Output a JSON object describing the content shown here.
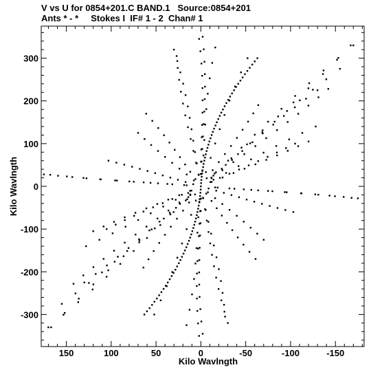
{
  "header": {
    "line1": "V vs U for 0854+201.C BAND.1   Source:0854+201",
    "line2": "Ants * - *     Stokes I  IF# 1 - 2  Chan# 1"
  },
  "chart_data": {
    "type": "scatter",
    "title": "V vs U for 0854+201.C BAND.1   Source:0854+201",
    "subtitle": "Ants * - *     Stokes I  IF# 1 - 2  Chan# 1",
    "xlabel": "Kilo Wavlngth",
    "ylabel": "Kilo Wavlngth",
    "xlim": [
      178,
      -182
    ],
    "ylim": [
      -375,
      375
    ],
    "x_reversed": true,
    "x_ticks": [
      150,
      100,
      50,
      0,
      -50,
      -100,
      -150
    ],
    "y_ticks": [
      300,
      200,
      100,
      0,
      -100,
      -200,
      -300
    ],
    "grid": false,
    "point_color": "#000000",
    "series": [
      {
        "arm_endpoints": [
          {
            "x": -52,
            "y": 300
          },
          {
            "x": -167,
            "y": 330
          },
          {
            "x": -155,
            "y": 275
          },
          {
            "x": -142,
            "y": 228
          },
          {
            "x": -128,
            "y": 140
          },
          {
            "x": -105,
            "y": 100
          },
          {
            "x": -175,
            "y": -28
          },
          {
            "x": -103,
            "y": -60
          },
          {
            "x": -70,
            "y": -125
          },
          {
            "x": 61,
            "y": 170
          },
          {
            "x": 27,
            "y": 305
          },
          {
            "x": 2,
            "y": 345
          },
          {
            "x": 168,
            "y": 27
          },
          {
            "x": 64,
            "y": -190
          },
          {
            "x": 170,
            "y": -330
          },
          {
            "x": 2,
            "y": -350
          },
          {
            "x": 16,
            "y": -325
          },
          {
            "x": 120,
            "y": -105
          },
          {
            "x": 130,
            "y": -225
          },
          {
            "x": -30,
            "y": -320
          }
        ]
      }
    ]
  }
}
